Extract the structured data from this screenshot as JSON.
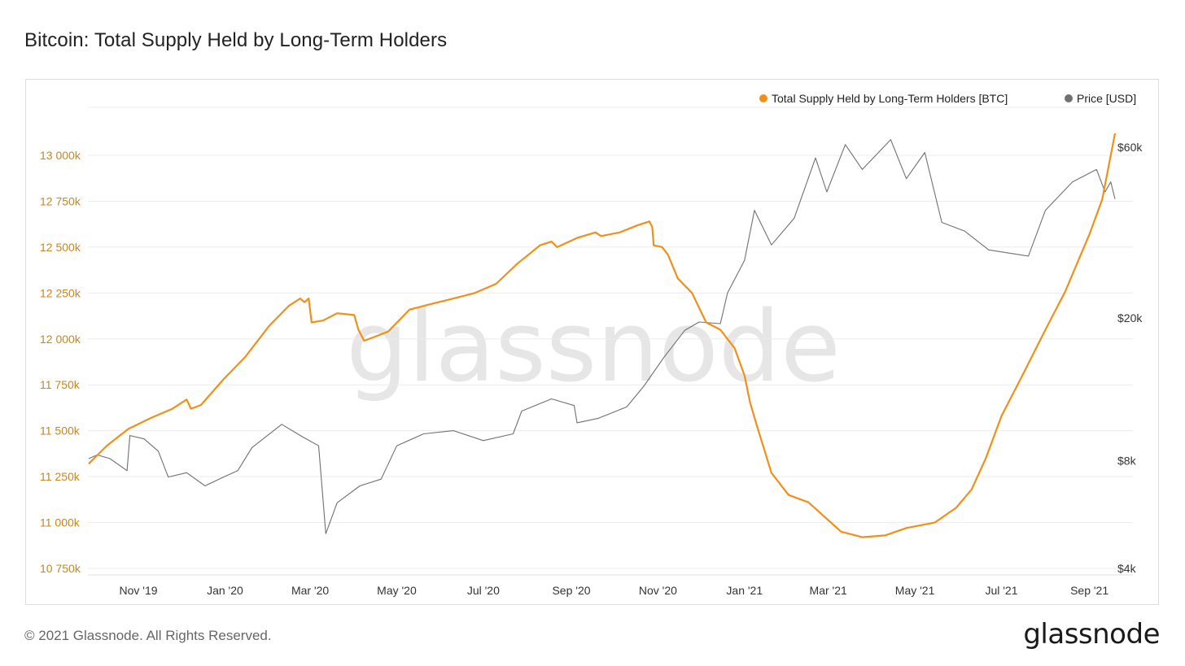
{
  "page": {
    "title": "Bitcoin: Total Supply Held by Long-Term Holders",
    "copyright": "© 2021 Glassnode. All Rights Reserved.",
    "logo_text": "glassnode",
    "watermark": "glassnode"
  },
  "colors": {
    "supply": "#f0901a",
    "price": "#707070",
    "left_axis": "#c8861e",
    "grid": "#ececec"
  },
  "chart_data": {
    "type": "line",
    "title": "Bitcoin: Total Supply Held by Long-Term Holders",
    "legend_position": "top-right",
    "grid": true,
    "x_ticks": [
      {
        "date": "2019-11-01",
        "label": "Nov '19"
      },
      {
        "date": "2020-01-01",
        "label": "Jan '20"
      },
      {
        "date": "2020-03-01",
        "label": "Mar '20"
      },
      {
        "date": "2020-05-01",
        "label": "May '20"
      },
      {
        "date": "2020-07-01",
        "label": "Jul '20"
      },
      {
        "date": "2020-09-01",
        "label": "Sep '20"
      },
      {
        "date": "2020-11-01",
        "label": "Nov '20"
      },
      {
        "date": "2021-01-01",
        "label": "Jan '21"
      },
      {
        "date": "2021-03-01",
        "label": "Mar '21"
      },
      {
        "date": "2021-05-01",
        "label": "May '21"
      },
      {
        "date": "2021-07-01",
        "label": "Jul '21"
      },
      {
        "date": "2021-09-01",
        "label": "Sep '21"
      }
    ],
    "xlim": [
      "2019-09-27",
      "2021-09-19"
    ],
    "y_left": {
      "unit": "BTC",
      "ylim": [
        10750000,
        13000000
      ],
      "ticks": [
        {
          "value": 13000000,
          "label": "13 000k"
        },
        {
          "value": 12750000,
          "label": "12 750k"
        },
        {
          "value": 12500000,
          "label": "12 500k"
        },
        {
          "value": 12250000,
          "label": "12 250k"
        },
        {
          "value": 12000000,
          "label": "12 000k"
        },
        {
          "value": 11750000,
          "label": "11 750k"
        },
        {
          "value": 11500000,
          "label": "11 500k"
        },
        {
          "value": 11250000,
          "label": "11 250k"
        },
        {
          "value": 11000000,
          "label": "11 000k"
        },
        {
          "value": 10750000,
          "label": "10 750k"
        }
      ]
    },
    "y_right": {
      "unit": "USD",
      "scale": "log",
      "ticks": [
        {
          "value": 60000,
          "label": "$60k"
        },
        {
          "value": 20000,
          "label": "$20k"
        },
        {
          "value": 8000,
          "label": "$8k"
        },
        {
          "value": 4000,
          "label": "$4k"
        }
      ]
    },
    "series": [
      {
        "name": "Total Supply Held by Long-Term Holders [BTC]",
        "axis": "left",
        "color": "#f0901a",
        "points": [
          [
            "2019-09-27",
            11320000
          ],
          [
            "2019-10-10",
            11420000
          ],
          [
            "2019-10-25",
            11510000
          ],
          [
            "2019-11-10",
            11570000
          ],
          [
            "2019-11-25",
            11620000
          ],
          [
            "2019-12-05",
            11670000
          ],
          [
            "2019-12-08",
            11620000
          ],
          [
            "2019-12-15",
            11640000
          ],
          [
            "2019-12-31",
            11780000
          ],
          [
            "2020-01-15",
            11900000
          ],
          [
            "2020-02-01",
            12070000
          ],
          [
            "2020-02-15",
            12180000
          ],
          [
            "2020-02-23",
            12220000
          ],
          [
            "2020-02-26",
            12200000
          ],
          [
            "2020-02-29",
            12220000
          ],
          [
            "2020-03-02",
            12090000
          ],
          [
            "2020-03-10",
            12100000
          ],
          [
            "2020-03-20",
            12140000
          ],
          [
            "2020-04-01",
            12130000
          ],
          [
            "2020-04-04",
            12050000
          ],
          [
            "2020-04-08",
            11990000
          ],
          [
            "2020-04-15",
            12010000
          ],
          [
            "2020-04-25",
            12040000
          ],
          [
            "2020-05-10",
            12160000
          ],
          [
            "2020-05-25",
            12190000
          ],
          [
            "2020-06-10",
            12220000
          ],
          [
            "2020-06-25",
            12250000
          ],
          [
            "2020-07-10",
            12300000
          ],
          [
            "2020-07-25",
            12410000
          ],
          [
            "2020-08-10",
            12510000
          ],
          [
            "2020-08-18",
            12530000
          ],
          [
            "2020-08-22",
            12500000
          ],
          [
            "2020-09-05",
            12550000
          ],
          [
            "2020-09-18",
            12580000
          ],
          [
            "2020-09-22",
            12560000
          ],
          [
            "2020-10-05",
            12580000
          ],
          [
            "2020-10-18",
            12620000
          ],
          [
            "2020-10-26",
            12640000
          ],
          [
            "2020-10-28",
            12610000
          ],
          [
            "2020-10-29",
            12510000
          ],
          [
            "2020-11-04",
            12500000
          ],
          [
            "2020-11-08",
            12460000
          ],
          [
            "2020-11-15",
            12330000
          ],
          [
            "2020-11-25",
            12250000
          ],
          [
            "2020-12-05",
            12090000
          ],
          [
            "2020-12-15",
            12050000
          ],
          [
            "2020-12-25",
            11950000
          ],
          [
            "2021-01-01",
            11800000
          ],
          [
            "2021-01-05",
            11650000
          ],
          [
            "2021-01-10",
            11520000
          ],
          [
            "2021-01-20",
            11270000
          ],
          [
            "2021-02-01",
            11150000
          ],
          [
            "2021-02-15",
            11110000
          ],
          [
            "2021-02-28",
            11020000
          ],
          [
            "2021-03-10",
            10950000
          ],
          [
            "2021-03-25",
            10920000
          ],
          [
            "2021-04-10",
            10930000
          ],
          [
            "2021-04-25",
            10970000
          ],
          [
            "2021-05-15",
            11000000
          ],
          [
            "2021-05-30",
            11080000
          ],
          [
            "2021-06-10",
            11180000
          ],
          [
            "2021-06-20",
            11350000
          ],
          [
            "2021-07-01",
            11580000
          ],
          [
            "2021-07-15",
            11790000
          ],
          [
            "2021-08-01",
            12050000
          ],
          [
            "2021-08-15",
            12260000
          ],
          [
            "2021-09-01",
            12570000
          ],
          [
            "2021-09-10",
            12760000
          ],
          [
            "2021-09-19",
            13120000
          ]
        ]
      },
      {
        "name": "Price [USD]",
        "axis": "right",
        "color": "#707070",
        "points": [
          [
            "2019-09-27",
            8100
          ],
          [
            "2019-10-03",
            8300
          ],
          [
            "2019-10-12",
            8100
          ],
          [
            "2019-10-24",
            7500
          ],
          [
            "2019-10-26",
            9400
          ],
          [
            "2019-11-05",
            9200
          ],
          [
            "2019-11-15",
            8500
          ],
          [
            "2019-11-22",
            7200
          ],
          [
            "2019-12-05",
            7400
          ],
          [
            "2019-12-18",
            6800
          ],
          [
            "2019-12-31",
            7200
          ],
          [
            "2020-01-10",
            7500
          ],
          [
            "2020-01-20",
            8700
          ],
          [
            "2020-02-10",
            10100
          ],
          [
            "2020-02-25",
            9300
          ],
          [
            "2020-03-07",
            8800
          ],
          [
            "2020-03-12",
            5000
          ],
          [
            "2020-03-20",
            6100
          ],
          [
            "2020-04-05",
            6800
          ],
          [
            "2020-04-20",
            7100
          ],
          [
            "2020-05-01",
            8800
          ],
          [
            "2020-05-20",
            9500
          ],
          [
            "2020-06-10",
            9700
          ],
          [
            "2020-07-01",
            9100
          ],
          [
            "2020-07-22",
            9500
          ],
          [
            "2020-07-28",
            11000
          ],
          [
            "2020-08-18",
            11900
          ],
          [
            "2020-09-03",
            11400
          ],
          [
            "2020-09-05",
            10200
          ],
          [
            "2020-09-20",
            10500
          ],
          [
            "2020-10-10",
            11300
          ],
          [
            "2020-10-22",
            12900
          ],
          [
            "2020-11-05",
            15500
          ],
          [
            "2020-11-20",
            18500
          ],
          [
            "2020-11-30",
            19500
          ],
          [
            "2020-12-15",
            19300
          ],
          [
            "2020-12-20",
            23500
          ],
          [
            "2021-01-01",
            29000
          ],
          [
            "2021-01-08",
            40000
          ],
          [
            "2021-01-20",
            32000
          ],
          [
            "2021-02-05",
            38000
          ],
          [
            "2021-02-20",
            56000
          ],
          [
            "2021-02-28",
            45000
          ],
          [
            "2021-03-13",
            61000
          ],
          [
            "2021-03-25",
            52000
          ],
          [
            "2021-04-14",
            63000
          ],
          [
            "2021-04-25",
            49000
          ],
          [
            "2021-05-08",
            58000
          ],
          [
            "2021-05-20",
            37000
          ],
          [
            "2021-06-05",
            35000
          ],
          [
            "2021-06-22",
            31000
          ],
          [
            "2021-07-20",
            29800
          ],
          [
            "2021-08-01",
            40000
          ],
          [
            "2021-08-20",
            48000
          ],
          [
            "2021-09-06",
            52000
          ],
          [
            "2021-09-12",
            45000
          ],
          [
            "2021-09-16",
            48000
          ],
          [
            "2021-09-19",
            43000
          ]
        ]
      }
    ]
  }
}
